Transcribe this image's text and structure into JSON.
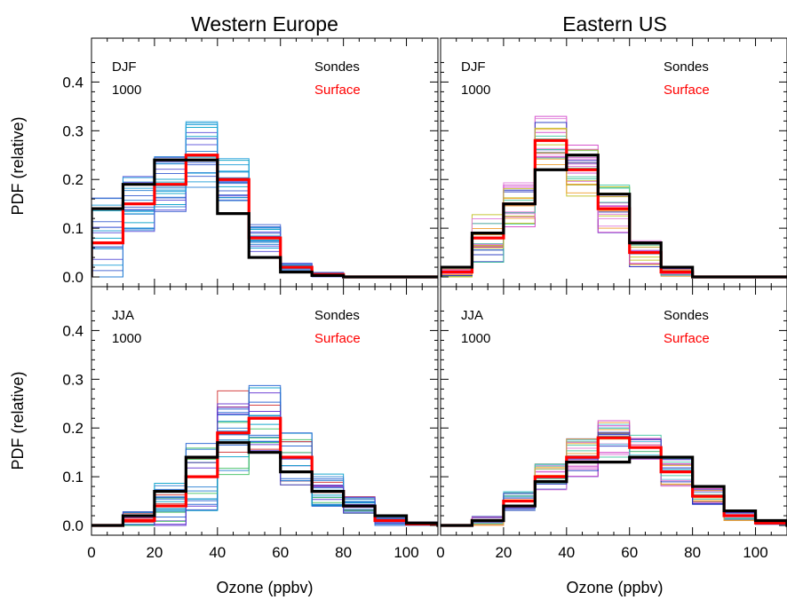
{
  "chart_data": {
    "type": "histogram-panels",
    "ylabel": "PDF (relative)",
    "xlabel": "Ozone (ppbv)",
    "xlim": [
      0,
      110
    ],
    "ylim": [
      -0.02,
      0.49
    ],
    "xticks": [
      "0",
      "20",
      "40",
      "60",
      "80",
      "100"
    ],
    "yticks": [
      "0.0",
      "0.1",
      "0.2",
      "0.3",
      "0.4"
    ],
    "column_titles": [
      "Western Europe",
      "Eastern US"
    ],
    "legend": {
      "sondes": {
        "label": "Sondes",
        "color": "#000000"
      },
      "surface": {
        "label": "Surface",
        "color": "#ff0000"
      }
    },
    "bin_edges": [
      0,
      10,
      20,
      30,
      40,
      50,
      60,
      70,
      80,
      90,
      100,
      110
    ],
    "panels": [
      {
        "region": "Western Europe",
        "season": "DJF",
        "level": "1000",
        "sondes": [
          0.14,
          0.19,
          0.24,
          0.24,
          0.13,
          0.04,
          0.01,
          0.003,
          0.0,
          0.0,
          0.0,
          0.0
        ],
        "surface": [
          0.07,
          0.15,
          0.19,
          0.25,
          0.2,
          0.08,
          0.02,
          0.005,
          0.0,
          0.0,
          0.0,
          0.0
        ],
        "station_hist_colors": [
          "#2a7fd4",
          "#1f9ed8",
          "#3a5fd0",
          "#00a0c8",
          "#5a4fd8"
        ],
        "station_hist_spread": [
          0.1,
          0.06,
          0.06,
          0.07,
          0.05,
          0.03,
          0.01,
          0.005,
          0.0,
          0.0,
          0.0,
          0.0
        ]
      },
      {
        "region": "Eastern US",
        "season": "DJF",
        "level": "1000",
        "sondes": [
          0.02,
          0.09,
          0.15,
          0.22,
          0.25,
          0.17,
          0.07,
          0.02,
          0.0,
          0.0,
          0.0,
          0.0
        ],
        "surface": [
          0.01,
          0.08,
          0.15,
          0.28,
          0.22,
          0.14,
          0.05,
          0.01,
          0.0,
          0.0,
          0.0,
          0.0
        ],
        "station_hist_colors": [
          "#d040c8",
          "#e07ad8",
          "#40c8a0",
          "#c0c020",
          "#2030c0",
          "#f0a030"
        ],
        "station_hist_spread": [
          0.01,
          0.05,
          0.05,
          0.05,
          0.06,
          0.05,
          0.03,
          0.01,
          0.0,
          0.0,
          0.0,
          0.0
        ]
      },
      {
        "region": "Western Europe",
        "season": "JJA",
        "level": "1000",
        "sondes": [
          0.0,
          0.02,
          0.07,
          0.14,
          0.17,
          0.15,
          0.11,
          0.07,
          0.04,
          0.02,
          0.005,
          0.0
        ],
        "surface": [
          0.0,
          0.01,
          0.04,
          0.1,
          0.19,
          0.22,
          0.14,
          0.07,
          0.04,
          0.01,
          0.003,
          0.0
        ],
        "station_hist_colors": [
          "#1f5fd0",
          "#2a7fd4",
          "#00a0c8",
          "#6030d0",
          "#d03030",
          "#40c060"
        ],
        "station_hist_spread": [
          0.0,
          0.02,
          0.05,
          0.07,
          0.09,
          0.07,
          0.06,
          0.04,
          0.02,
          0.01,
          0.005,
          0.0
        ]
      },
      {
        "region": "Eastern US",
        "season": "JJA",
        "level": "1000",
        "sondes": [
          0.0,
          0.01,
          0.04,
          0.09,
          0.13,
          0.13,
          0.14,
          0.14,
          0.08,
          0.03,
          0.01,
          0.0
        ],
        "surface": [
          0.0,
          0.01,
          0.05,
          0.1,
          0.14,
          0.18,
          0.16,
          0.11,
          0.06,
          0.02,
          0.005,
          0.0
        ],
        "station_hist_colors": [
          "#e07ad8",
          "#40c8a0",
          "#f0a030",
          "#2030c0",
          "#d040c8",
          "#60d0e0"
        ],
        "station_hist_spread": [
          0.0,
          0.01,
          0.02,
          0.03,
          0.04,
          0.04,
          0.03,
          0.03,
          0.02,
          0.01,
          0.005,
          0.0
        ]
      }
    ]
  }
}
